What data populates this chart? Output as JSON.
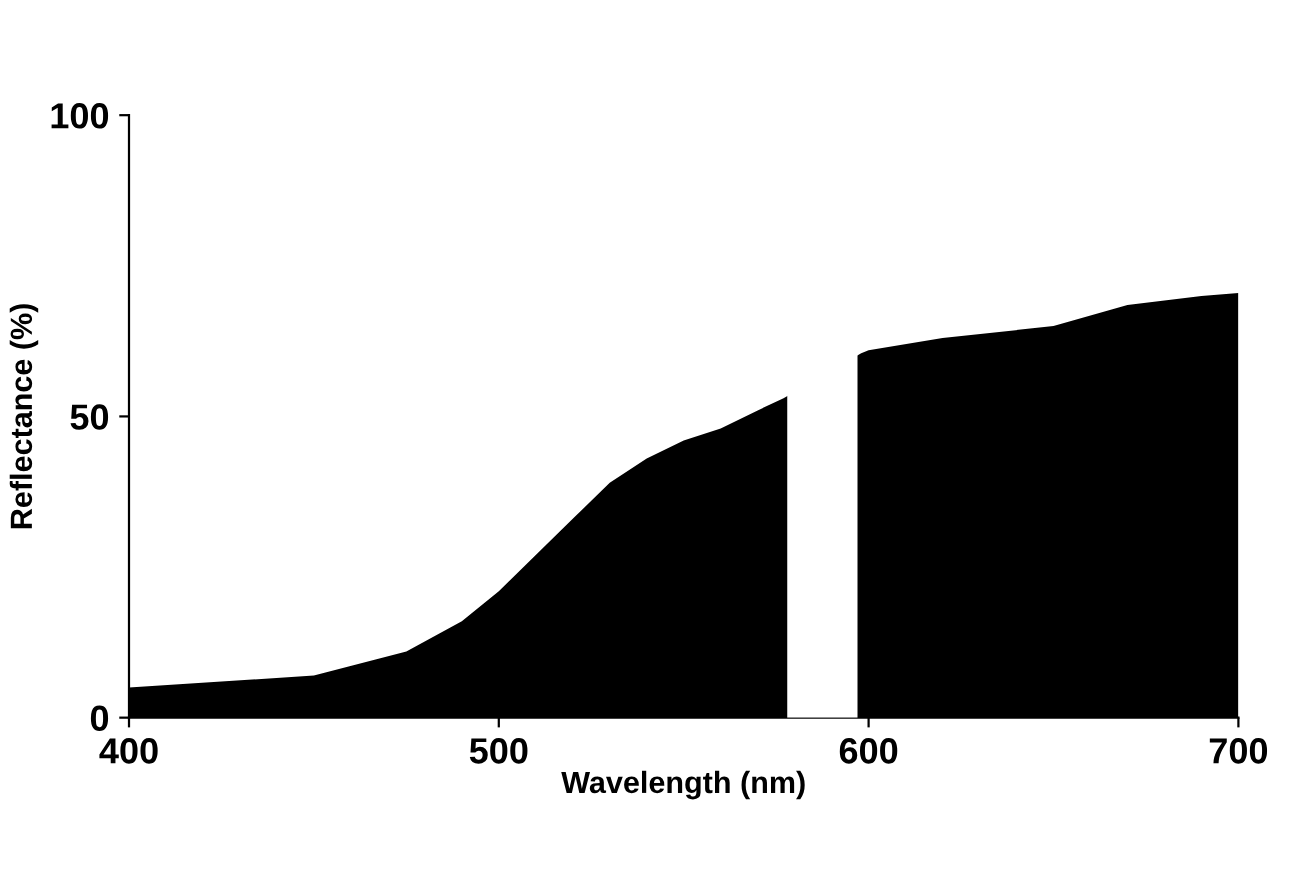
{
  "chart_data": {
    "type": "area",
    "xlabel": "Wavelength (nm)",
    "ylabel": "Reflectance (%)",
    "x": [
      400,
      450,
      475,
      490,
      500,
      510,
      520,
      530,
      540,
      550,
      560,
      570,
      577,
      598,
      600,
      620,
      650,
      670,
      690,
      700
    ],
    "series": [
      {
        "color": "#000000",
        "values": [
          5,
          7,
          11,
          16,
          21,
          27,
          33,
          39,
          43,
          46,
          48,
          51,
          53,
          60.5,
          61,
          63,
          65,
          68.5,
          70,
          70.5
        ]
      }
    ],
    "bands": [
      {
        "axis": "x",
        "from": 578,
        "to": 597,
        "color": "#ffffff"
      }
    ],
    "xlim": [
      400,
      700
    ],
    "ylim": [
      0,
      100
    ],
    "xticks": [
      400,
      500,
      600,
      700
    ],
    "yticks": [
      0,
      50,
      100
    ],
    "grid": false,
    "legend": false
  }
}
